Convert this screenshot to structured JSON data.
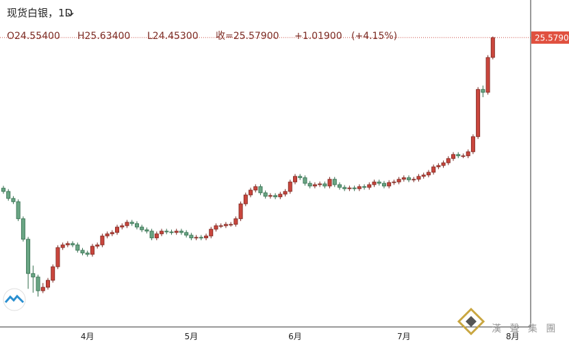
{
  "chart_data": {
    "type": "candlestick",
    "title": "现货白银，1D",
    "header": {
      "open": "O24.55400",
      "high": "H25.63400",
      "low": "L24.45300",
      "close": "收=25.57900",
      "change": "+1.01900",
      "change_pct": "(+4.15%)"
    },
    "last_price_label": "25.5790",
    "watermark": "漢 聲 集 團",
    "up_color": "#c9463d",
    "down_color": "#6aa584",
    "ylim": [
      10.63,
      27.52
    ],
    "categories": [
      null,
      null,
      null,
      null,
      null,
      null,
      null,
      null,
      null,
      null,
      null,
      null,
      null,
      null,
      null,
      null,
      null,
      "4月",
      null,
      null,
      null,
      null,
      null,
      null,
      null,
      null,
      null,
      null,
      null,
      null,
      null,
      null,
      null,
      null,
      null,
      null,
      null,
      null,
      "5月",
      null,
      null,
      null,
      null,
      null,
      null,
      null,
      null,
      null,
      null,
      null,
      null,
      null,
      null,
      null,
      null,
      null,
      null,
      null,
      null,
      "6月",
      null,
      null,
      null,
      null,
      null,
      null,
      null,
      null,
      null,
      null,
      null,
      null,
      null,
      null,
      null,
      null,
      null,
      null,
      null,
      null,
      null,
      "7月",
      null,
      null,
      null,
      null,
      null,
      null,
      null,
      null,
      null,
      null,
      null,
      null,
      null,
      null,
      null,
      null,
      null,
      null,
      null,
      null,
      null,
      "8月",
      null
    ],
    "open": [
      17.8,
      17.63,
      17.27,
      17.1,
      16.22,
      15.16,
      13.39,
      13.21,
      12.5,
      12.68,
      13.04,
      13.74,
      14.73,
      14.87,
      14.94,
      14.87,
      14.59,
      14.45,
      14.38,
      14.8,
      14.87,
      15.33,
      15.44,
      15.51,
      15.79,
      15.86,
      16.04,
      15.97,
      15.79,
      15.65,
      15.58,
      15.23,
      15.44,
      15.58,
      15.54,
      15.51,
      15.58,
      15.51,
      15.37,
      15.23,
      15.26,
      15.23,
      15.33,
      15.68,
      15.86,
      15.86,
      15.93,
      15.93,
      16.22,
      16.99,
      17.45,
      17.7,
      17.88,
      17.56,
      17.38,
      17.42,
      17.35,
      17.49,
      17.63,
      18.12,
      18.41,
      18.34,
      18.05,
      17.91,
      17.98,
      18.02,
      17.91,
      18.26,
      17.98,
      17.84,
      17.77,
      17.81,
      17.77,
      17.88,
      17.84,
      17.98,
      18.12,
      18.05,
      17.91,
      18.09,
      18.12,
      18.26,
      18.34,
      18.23,
      18.26,
      18.41,
      18.48,
      18.62,
      18.9,
      18.97,
      19.11,
      19.33,
      19.54,
      19.47,
      19.47,
      19.68,
      20.46,
      22.9,
      22.75,
      24.554,
      null,
      null,
      null,
      null,
      null
    ],
    "high": [
      17.92,
      17.75,
      17.39,
      17.22,
      16.34,
      15.28,
      13.8,
      13.33,
      12.9,
      13.16,
      13.86,
      14.85,
      14.99,
      15.06,
      15.06,
      14.99,
      14.71,
      14.57,
      14.92,
      14.99,
      15.45,
      15.56,
      15.63,
      15.91,
      15.98,
      16.16,
      16.16,
      16.09,
      15.91,
      15.77,
      15.7,
      15.56,
      15.7,
      15.7,
      15.66,
      15.7,
      15.7,
      15.63,
      15.49,
      15.38,
      15.38,
      15.45,
      15.8,
      15.98,
      15.98,
      16.05,
      16.05,
      16.34,
      17.11,
      17.57,
      17.82,
      18.0,
      18.0,
      17.68,
      17.54,
      17.54,
      17.61,
      17.75,
      18.24,
      18.53,
      18.53,
      18.46,
      18.17,
      18.1,
      18.14,
      18.14,
      18.38,
      18.38,
      18.1,
      17.96,
      17.93,
      17.93,
      18.0,
      18.0,
      18.1,
      18.24,
      18.24,
      18.17,
      18.21,
      18.24,
      18.38,
      18.46,
      18.46,
      18.38,
      18.53,
      18.6,
      18.74,
      19.02,
      19.09,
      19.23,
      19.45,
      19.66,
      19.66,
      19.59,
      19.8,
      20.58,
      23.02,
      23.1,
      24.67,
      25.634,
      null,
      null,
      null,
      null,
      null
    ],
    "low": [
      17.51,
      17.15,
      16.98,
      16.1,
      15.04,
      12.6,
      12.4,
      12.2,
      12.38,
      12.56,
      12.92,
      13.62,
      14.61,
      14.75,
      14.75,
      14.47,
      14.33,
      14.26,
      14.26,
      14.68,
      14.75,
      15.21,
      15.32,
      15.39,
      15.67,
      15.74,
      15.85,
      15.67,
      15.53,
      15.46,
      15.11,
      15.11,
      15.32,
      15.42,
      15.39,
      15.39,
      15.39,
      15.25,
      15.11,
      15.11,
      15.11,
      15.11,
      15.21,
      15.56,
      15.74,
      15.74,
      15.81,
      15.81,
      16.1,
      16.87,
      17.33,
      17.58,
      17.44,
      17.26,
      17.26,
      17.23,
      17.23,
      17.37,
      17.51,
      18.0,
      18.22,
      17.93,
      17.79,
      17.79,
      17.86,
      17.79,
      17.79,
      17.86,
      17.72,
      17.65,
      17.65,
      17.65,
      17.65,
      17.72,
      17.72,
      17.86,
      17.93,
      17.79,
      17.79,
      17.97,
      18.0,
      18.14,
      18.11,
      18.11,
      18.14,
      18.29,
      18.36,
      18.5,
      18.78,
      18.85,
      18.99,
      19.21,
      19.35,
      19.35,
      19.35,
      19.56,
      20.34,
      22.5,
      22.63,
      24.453,
      null,
      null,
      null,
      null,
      null
    ],
    "close": [
      17.63,
      17.27,
      17.1,
      16.22,
      15.16,
      13.39,
      13.21,
      12.5,
      12.68,
      13.04,
      13.74,
      14.73,
      14.87,
      14.94,
      14.87,
      14.59,
      14.45,
      14.38,
      14.8,
      14.87,
      15.33,
      15.44,
      15.51,
      15.79,
      15.86,
      16.04,
      15.97,
      15.79,
      15.65,
      15.58,
      15.23,
      15.44,
      15.58,
      15.54,
      15.51,
      15.58,
      15.51,
      15.37,
      15.23,
      15.26,
      15.23,
      15.33,
      15.68,
      15.86,
      15.86,
      15.93,
      15.93,
      16.22,
      16.99,
      17.45,
      17.7,
      17.88,
      17.56,
      17.38,
      17.42,
      17.35,
      17.49,
      17.63,
      18.12,
      18.41,
      18.34,
      18.05,
      17.91,
      17.98,
      18.02,
      17.91,
      18.26,
      17.98,
      17.84,
      17.77,
      17.81,
      17.77,
      17.88,
      17.84,
      17.98,
      18.12,
      18.05,
      17.91,
      18.09,
      18.12,
      18.26,
      18.34,
      18.23,
      18.26,
      18.41,
      18.48,
      18.62,
      18.9,
      18.97,
      19.11,
      19.33,
      19.54,
      19.47,
      19.47,
      19.68,
      20.46,
      22.9,
      22.75,
      24.55,
      25.579,
      null,
      null,
      null,
      null,
      null
    ]
  }
}
